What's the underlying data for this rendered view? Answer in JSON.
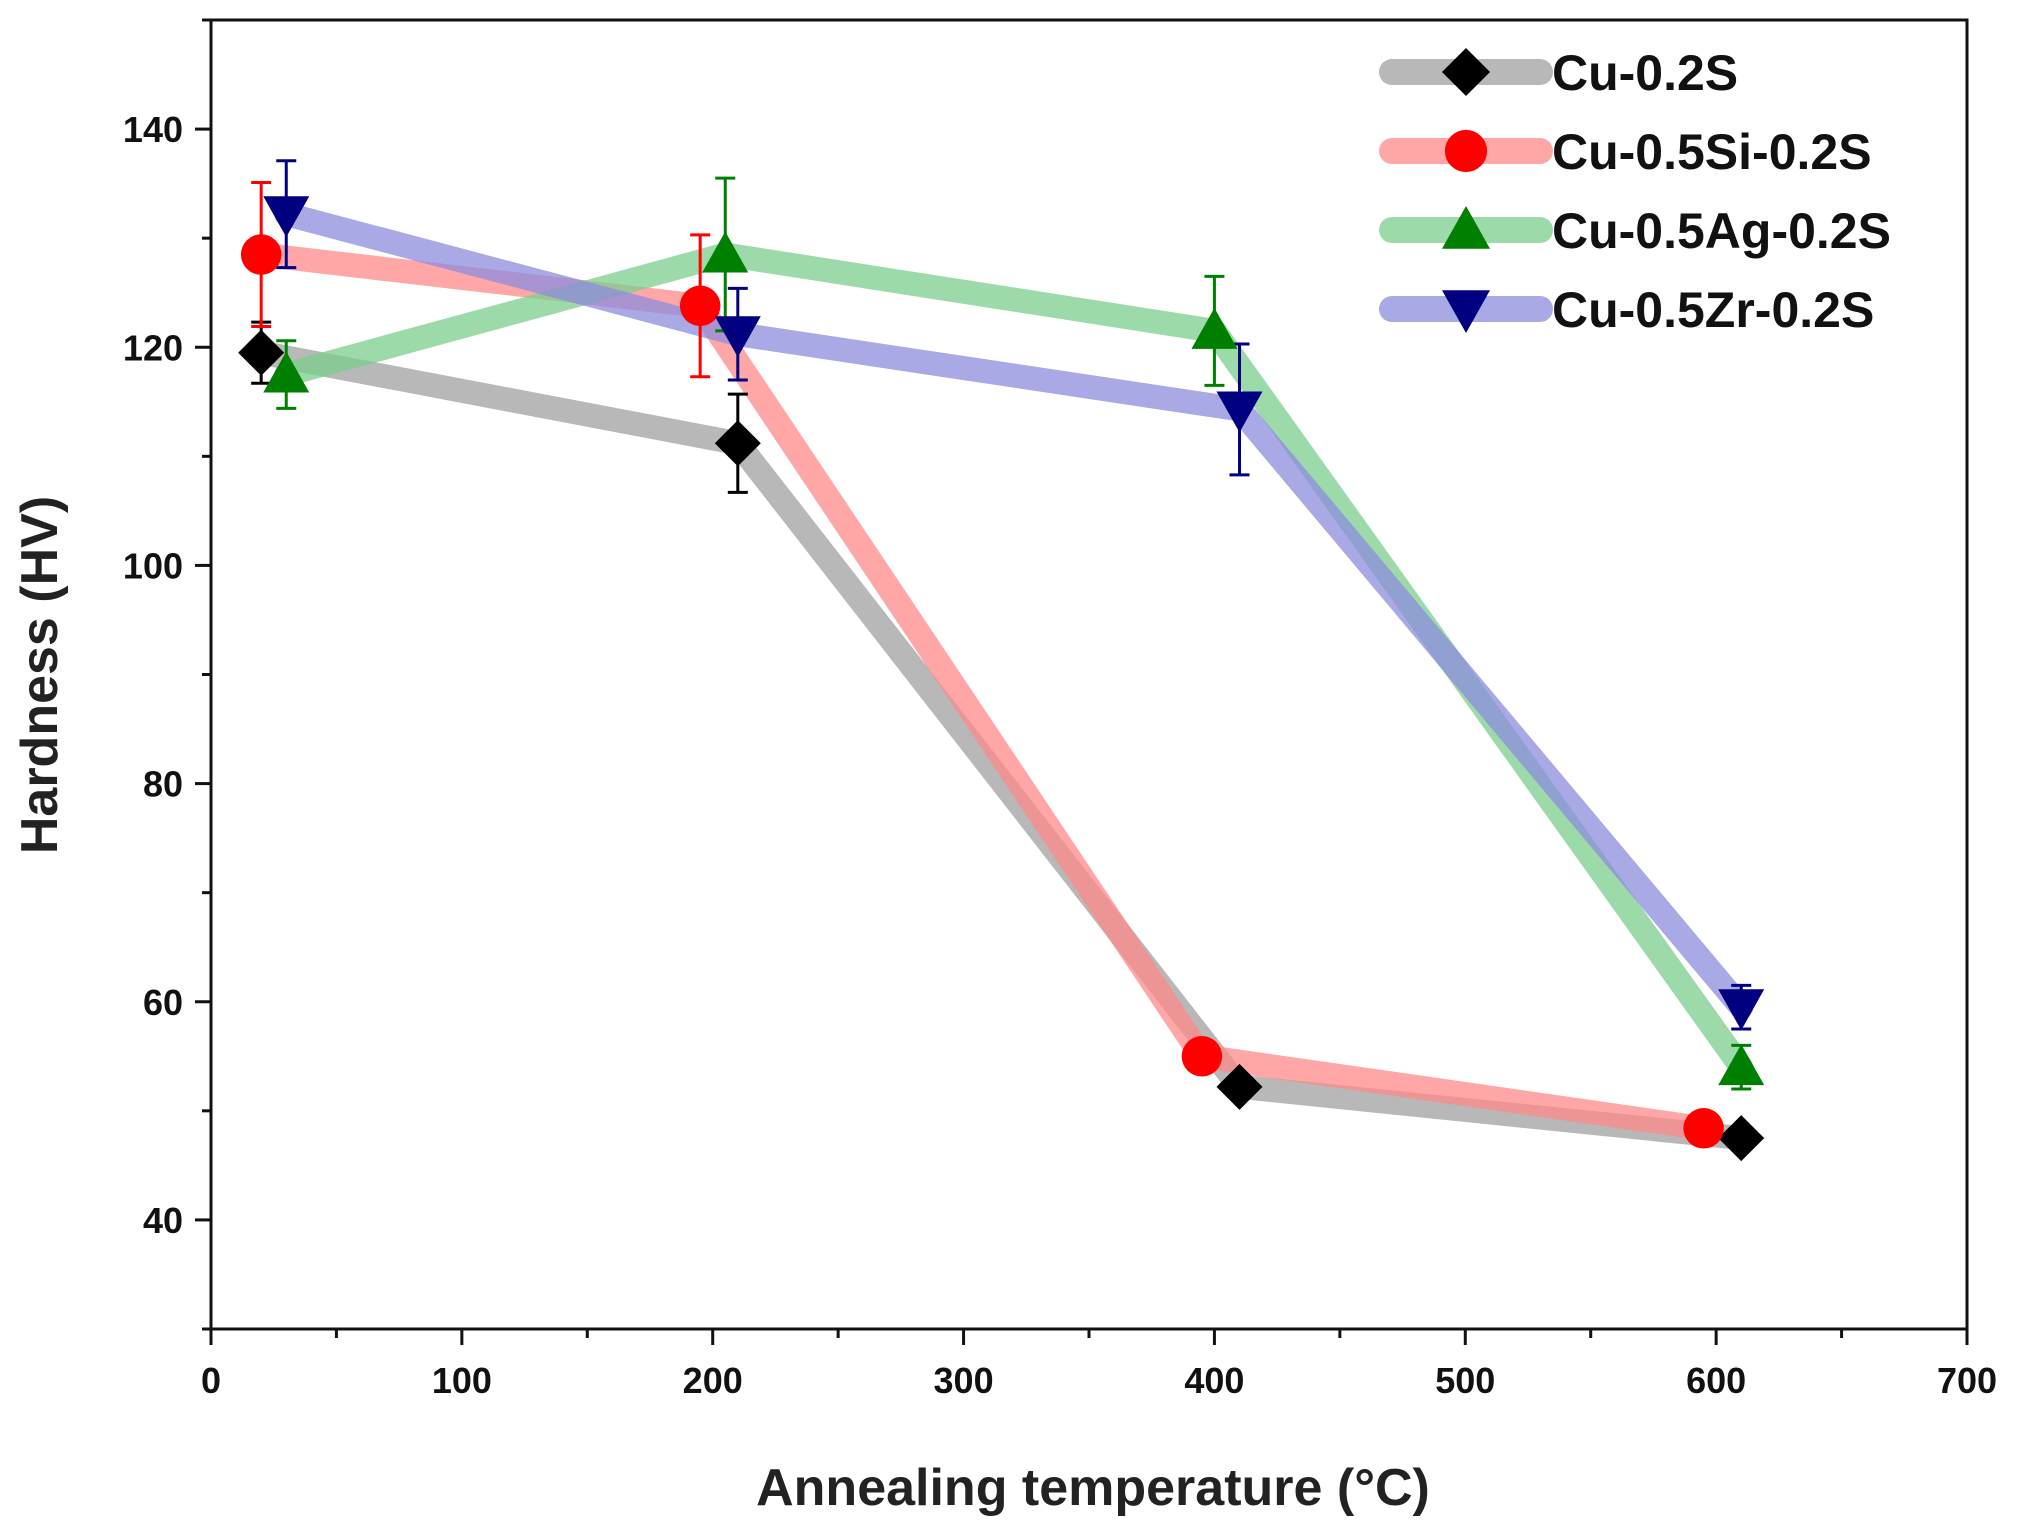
{
  "chart_data": {
    "type": "line",
    "title": "",
    "xlabel": "Annealing temperature (°C)",
    "ylabel": "Hardness (HV)",
    "xlim": [
      0,
      700
    ],
    "ylim": [
      30,
      150
    ],
    "x_ticks": [
      0,
      100,
      200,
      300,
      400,
      500,
      600,
      700
    ],
    "y_ticks": [
      40,
      60,
      80,
      100,
      120,
      140
    ],
    "grid": false,
    "legend_position": "top-right",
    "series": [
      {
        "name": "Cu-0.2S",
        "marker": "diamond",
        "marker_color": "#000000",
        "line_color": "#a0a0a0",
        "error_color": "#000000",
        "points": [
          {
            "x": 20,
            "y": 119.5,
            "err": 2.8
          },
          {
            "x": 210,
            "y": 111.2,
            "err": 4.5
          },
          {
            "x": 410,
            "y": 52.2,
            "err": 0
          },
          {
            "x": 610,
            "y": 47.5,
            "err": 0
          }
        ]
      },
      {
        "name": "Cu-0.5Si-0.2S",
        "marker": "circle",
        "marker_color": "#ff0000",
        "line_color": "#ff8a8a",
        "error_color": "#ff0000",
        "points": [
          {
            "x": 20,
            "y": 128.5,
            "err": 6.6
          },
          {
            "x": 195,
            "y": 123.8,
            "err": 6.5
          },
          {
            "x": 395,
            "y": 55.0,
            "err": 0
          },
          {
            "x": 595,
            "y": 48.4,
            "err": 0
          }
        ]
      },
      {
        "name": "Cu-0.5Ag-0.2S",
        "marker": "triangle-up",
        "marker_color": "#008000",
        "line_color": "#7cce8e",
        "error_color": "#008000",
        "points": [
          {
            "x": 30,
            "y": 117.5,
            "err": 3.1
          },
          {
            "x": 205,
            "y": 128.5,
            "err": 7.0
          },
          {
            "x": 400,
            "y": 121.5,
            "err": 5.0
          },
          {
            "x": 610,
            "y": 54.0,
            "err": 2.0
          }
        ]
      },
      {
        "name": "Cu-0.5Zr-0.2S",
        "marker": "triangle-down",
        "marker_color": "#000080",
        "line_color": "#8c8cde",
        "error_color": "#000080",
        "points": [
          {
            "x": 30,
            "y": 132.2,
            "err": 4.9
          },
          {
            "x": 210,
            "y": 121.2,
            "err": 4.2
          },
          {
            "x": 410,
            "y": 114.3,
            "err": 6.0
          },
          {
            "x": 610,
            "y": 59.5,
            "err": 2.0
          }
        ]
      }
    ]
  }
}
